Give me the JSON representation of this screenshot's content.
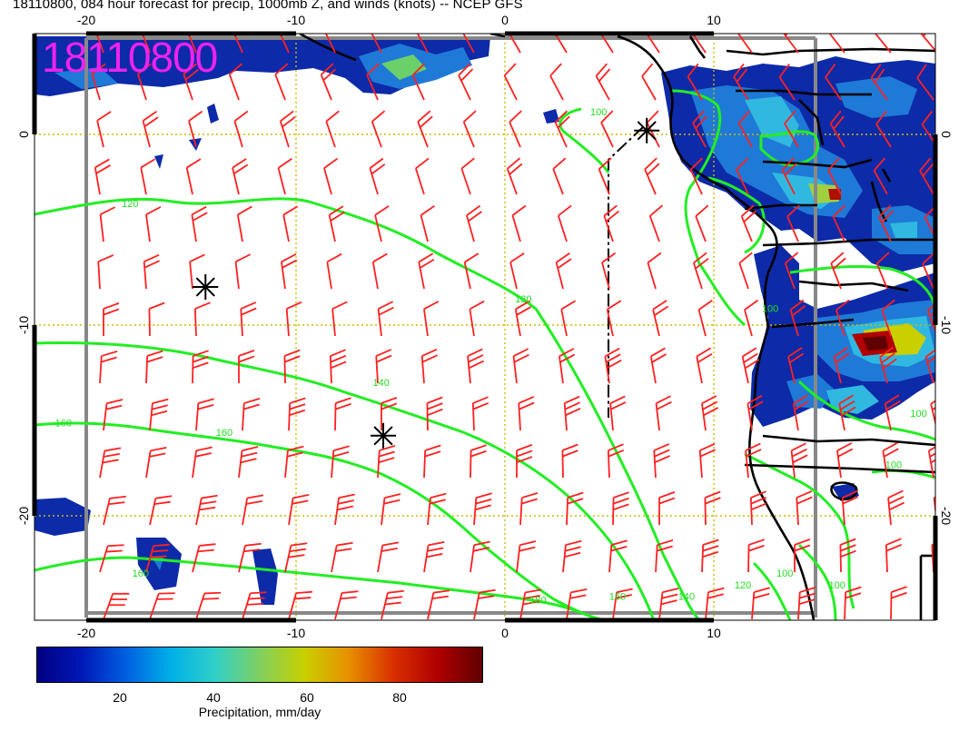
{
  "title": "18110800, 084 hour forecast for precip, 1000mb Z, and winds (knots) -- NCEP GFS",
  "stamp": "18110800",
  "map": {
    "lon_ticks": [
      "-20",
      "-10",
      "0",
      "10"
    ],
    "lat_ticks": [
      "0",
      "-10",
      "-20"
    ],
    "lon_range": [
      -22.5,
      20.5
    ],
    "lat_range": [
      -25.5,
      5
    ],
    "grid_lons": [
      -20,
      -10,
      0,
      10
    ],
    "grid_lats": [
      0,
      -10,
      -20
    ],
    "contour_labels": [
      {
        "text": "120",
        "lon": -18.3,
        "lat": -3.8
      },
      {
        "text": "130",
        "lon": 0.5,
        "lat": -8.8
      },
      {
        "text": "140",
        "lon": -6.3,
        "lat": -13.2
      },
      {
        "text": "160",
        "lon": -13.8,
        "lat": -15.8
      },
      {
        "text": "160",
        "lon": -21.5,
        "lat": -15.3
      },
      {
        "text": "160",
        "lon": -17.8,
        "lat": -23.2
      },
      {
        "text": "180",
        "lon": 1.2,
        "lat": -24.6
      },
      {
        "text": "160",
        "lon": 5.0,
        "lat": -24.4
      },
      {
        "text": "140",
        "lon": 8.3,
        "lat": -24.4
      },
      {
        "text": "120",
        "lon": 11.0,
        "lat": -23.8
      },
      {
        "text": "100",
        "lon": 13.0,
        "lat": -23.2
      },
      {
        "text": "100",
        "lon": 15.5,
        "lat": -23.8
      },
      {
        "text": "100",
        "lon": 12.3,
        "lat": -9.3
      },
      {
        "text": "100",
        "lon": 19.4,
        "lat": -14.8
      },
      {
        "text": "100",
        "lon": 18.2,
        "lat": -17.5
      },
      {
        "text": "100",
        "lon": 4.1,
        "lat": 1.0
      }
    ],
    "markers": [
      {
        "lon": -14.3,
        "lat": -8.0
      },
      {
        "lon": -5.8,
        "lat": -15.8
      },
      {
        "lon": 6.8,
        "lat": 0.2
      }
    ]
  },
  "colorbar": {
    "ticks": [
      "20",
      "40",
      "60",
      "80"
    ],
    "title": "Precipitation, mm/day",
    "colors": [
      "#000080",
      "#0018b8",
      "#0060e0",
      "#00b0e8",
      "#30d0c8",
      "#80d060",
      "#c8d000",
      "#e89000",
      "#d83000",
      "#b00000",
      "#600000"
    ]
  },
  "colors": {
    "contour": "#22ee22",
    "barb": "#ff2020",
    "grid": "#ccbb00",
    "coast": "#000000"
  }
}
